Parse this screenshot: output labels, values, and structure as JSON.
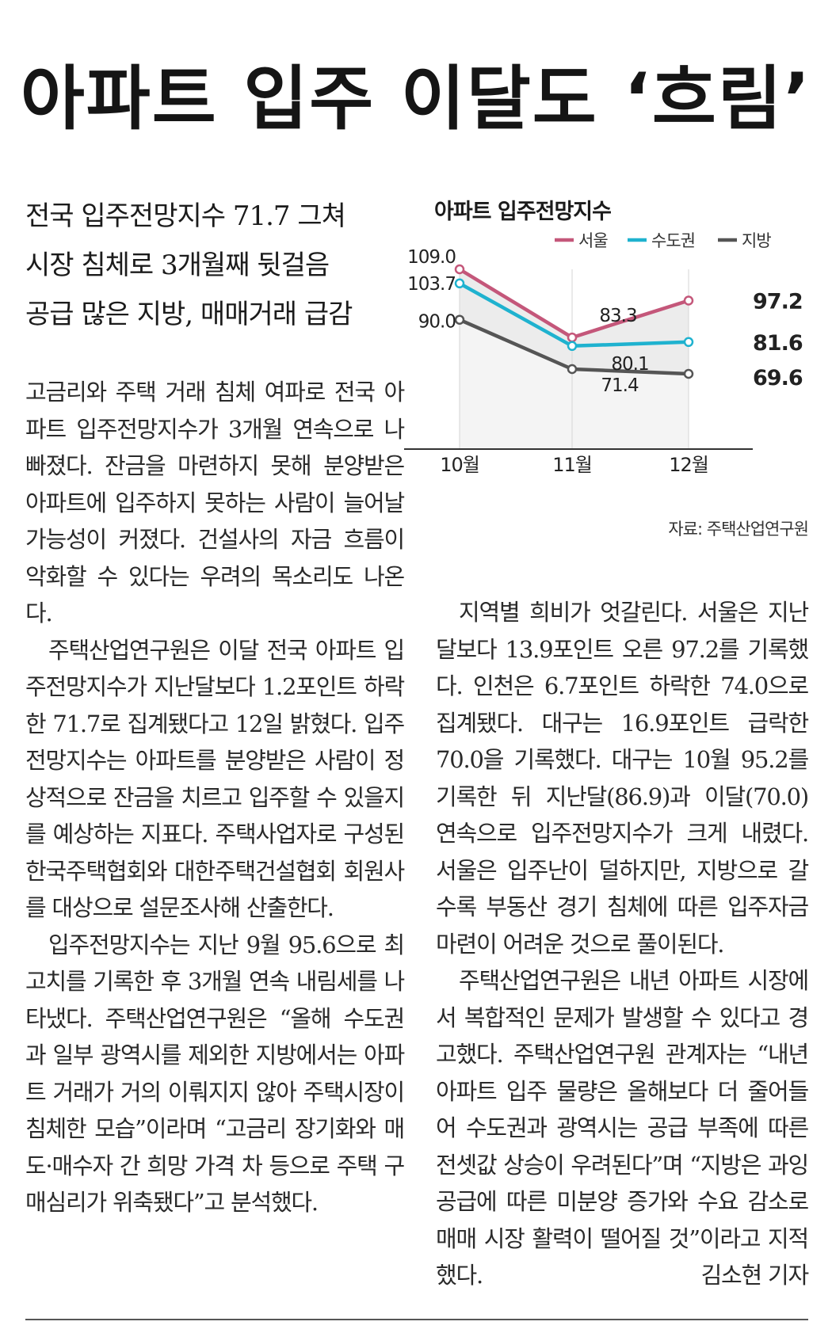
{
  "headline": "아파트 입주 이달도 ‘흐림’",
  "deck": [
    "전국 입주전망지수 71.7 그쳐",
    "시장 침체로 3개월째 뒷걸음",
    "공급 많은 지방, 매매거래 급감"
  ],
  "article": {
    "left_paragraphs": [
      "고금리와 주택 거래 침체 여파로 전국 아파트 입주전망지수가 3개월 연속으로 나빠졌다. 잔금을 마련하지 못해 분양받은 아파트에 입주하지 못하는 사람이 늘어날 가능성이 커졌다. 건설사의 자금 흐름이 악화할 수 있다는 우려의 목소리도 나온다.",
      "주택산업연구원은 이달 전국 아파트 입주전망지수가 지난달보다 1.2포인트 하락한 71.7로 집계됐다고 12일 밝혔다. 입주전망지수는 아파트를 분양받은 사람이 정상적으로 잔금을 치르고 입주할 수 있을지를 예상하는 지표다. 주택사업자로 구성된 한국주택협회와 대한주택건설협회 회원사를 대상으로 설문조사해 산출한다.",
      "입주전망지수는 지난 9월 95.6으로 최고치를 기록한 후 3개월 연속 내림세를 나타냈다. 주택산업연구원은 “올해 수도권과 일부 광역시를 제외한 지방에서는 아파트 거래가 거의 이뤄지지 않아 주택시장이 침체한 모습”이라며 “고금리 장기화와 매도·매수자 간 희망 가격 차 등으로 주택 구매심리가 위축됐다”고 분석했다."
    ],
    "right_paragraphs": [
      "지역별 희비가 엇갈린다. 서울은 지난달보다 13.9포인트 오른 97.2를 기록했다. 인천은 6.7포인트 하락한 74.0으로 집계됐다. 대구는 16.9포인트 급락한 70.0을 기록했다. 대구는 10월 95.2를 기록한 뒤 지난달(86.9)과 이달(70.0) 연속으로 입주전망지수가 크게 내렸다. 서울은 입주난이 덜하지만, 지방으로 갈수록 부동산 경기 침체에 따른 입주자금 마련이 어려운 것으로 풀이된다.",
      "주택산업연구원은 내년 아파트 시장에서 복합적인 문제가 발생할 수 있다고 경고했다. 주택산업연구원 관계자는 “내년 아파트 입주 물량은 올해보다 더 줄어들어 수도권과 광역시는 공급 부족에 따른 전셋값 상승이 우려된다”며 “지방은 과잉 공급에 따른 미분양 증가와 수요 감소로 매매 시장 활력이 떨어질 것”이라고 지적했다."
    ],
    "byline": "김소현 기자"
  },
  "chart": {
    "title": "아파트 입주전망지수",
    "source": "자료: 주택산업연구원"
  },
  "chart_data": {
    "type": "line",
    "title": "아파트 입주전망지수",
    "categories": [
      "10월",
      "11월",
      "12월"
    ],
    "series": [
      {
        "name": "서울",
        "color": "#c4577a",
        "values": [
          109.0,
          83.3,
          97.2
        ]
      },
      {
        "name": "수도권",
        "color": "#1fb2cf",
        "values": [
          103.7,
          80.1,
          81.6
        ]
      },
      {
        "name": "지방",
        "color": "#555555",
        "values": [
          90.0,
          71.4,
          69.6
        ]
      }
    ],
    "value_labels": [
      "109.0",
      "83.3",
      "97.2",
      "103.7",
      "80.1",
      "81.6",
      "90.0",
      "71.4",
      "69.6"
    ],
    "legend_position": "top-right",
    "grid": false,
    "source": "자료: 주택산업연구원"
  }
}
